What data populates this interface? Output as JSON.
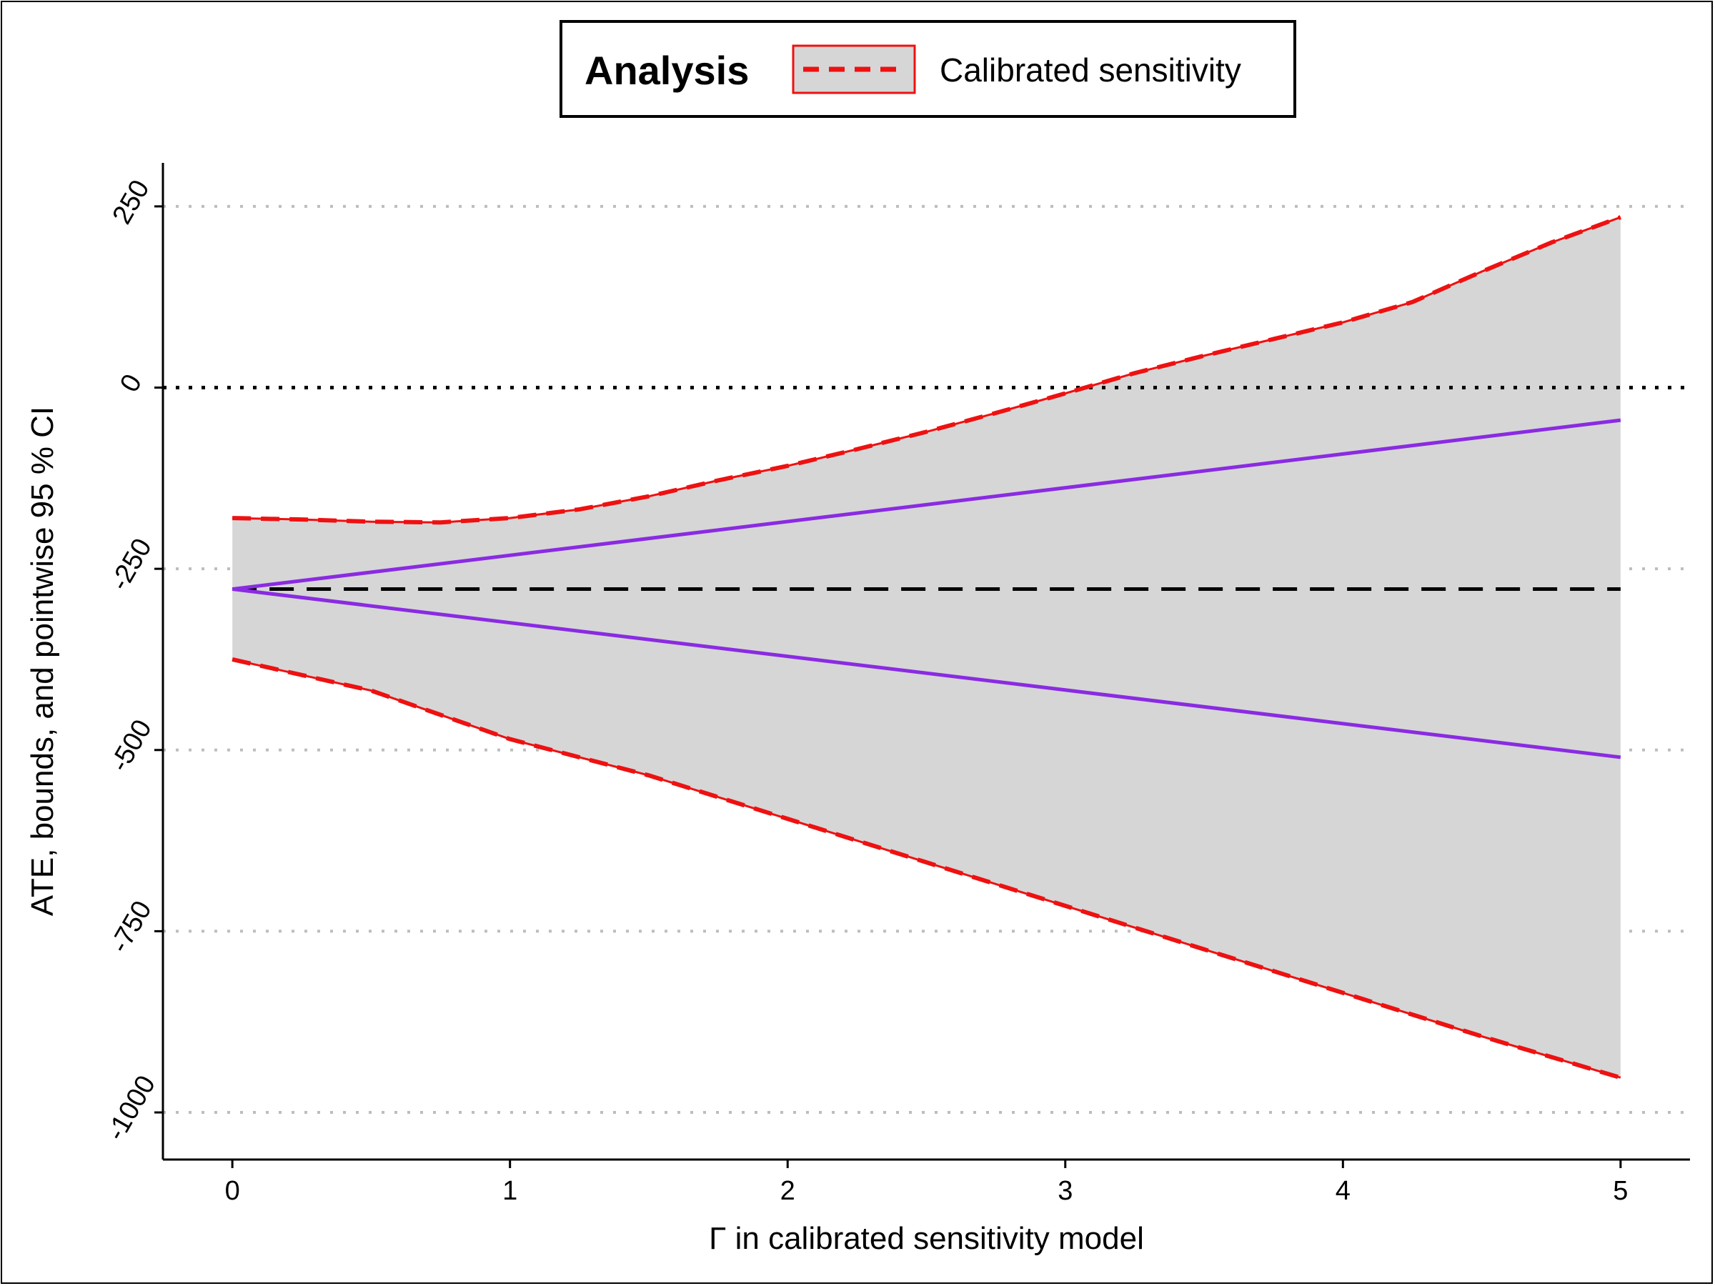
{
  "chart_data": {
    "type": "line",
    "title": "",
    "xlabel": "Γ in calibrated sensitivity model",
    "ylabel": "ATE, bounds, and pointwise 95 % CI",
    "xlim": [
      -0.25,
      5.25
    ],
    "ylim": [
      -1065,
      310
    ],
    "x_ticks": [
      0,
      1,
      2,
      3,
      4,
      5
    ],
    "x_tick_labels": [
      "0",
      "1",
      "2",
      "3",
      "4",
      "5"
    ],
    "y_ticks": [
      250,
      0,
      -250,
      -500,
      -750,
      -1000
    ],
    "y_tick_labels": [
      "250",
      "0",
      "-250",
      "-500",
      "-750",
      "-1000"
    ],
    "grid": "horizontal dotted at y ticks",
    "reference_lines": [
      {
        "kind": "zero",
        "y": 0,
        "style": "dotted",
        "color": "#000000"
      },
      {
        "kind": "point-estimate",
        "y": -278,
        "style": "dashed",
        "color": "#000000"
      }
    ],
    "legend": {
      "title": "Analysis",
      "placement": "top-center",
      "entries": [
        {
          "label": "Calibrated sensitivity",
          "color": "#ee1111",
          "style": "dashed"
        }
      ]
    },
    "series": [
      {
        "name": "Calibrated sensitivity",
        "role": "ci-upper",
        "color": "#ee1111",
        "style": "dashed",
        "x": [
          0,
          0.25,
          0.5,
          0.75,
          1,
          1.25,
          1.5,
          1.75,
          2,
          2.25,
          2.5,
          2.75,
          3,
          3.25,
          3.5,
          3.75,
          4,
          4.25,
          4.5,
          4.75,
          5
        ],
        "values": [
          -180,
          -182,
          -185,
          -186,
          -180,
          -168,
          -150,
          -128,
          -108,
          -85,
          -61,
          -35,
          -8,
          20,
          44,
          67,
          90,
          118,
          160,
          200,
          235
        ]
      },
      {
        "name": "Calibrated sensitivity",
        "role": "ci-lower",
        "color": "#ee1111",
        "style": "dashed",
        "x": [
          0,
          0.5,
          1,
          1.5,
          2,
          2.5,
          3,
          3.5,
          4,
          4.5,
          5
        ],
        "values": [
          -375,
          -418,
          -485,
          -535,
          -595,
          -655,
          -715,
          -775,
          -835,
          -895,
          -952
        ]
      },
      {
        "role": "bound-upper",
        "color": "#8a2be2",
        "style": "solid",
        "x": [
          0,
          5
        ],
        "values": [
          -278,
          -45
        ]
      },
      {
        "role": "bound-lower",
        "color": "#8a2be2",
        "style": "solid",
        "x": [
          0,
          5
        ],
        "values": [
          -278,
          -510
        ]
      }
    ],
    "band": {
      "between": [
        "ci-lower",
        "ci-upper"
      ],
      "color": "#d6d6d6"
    }
  }
}
